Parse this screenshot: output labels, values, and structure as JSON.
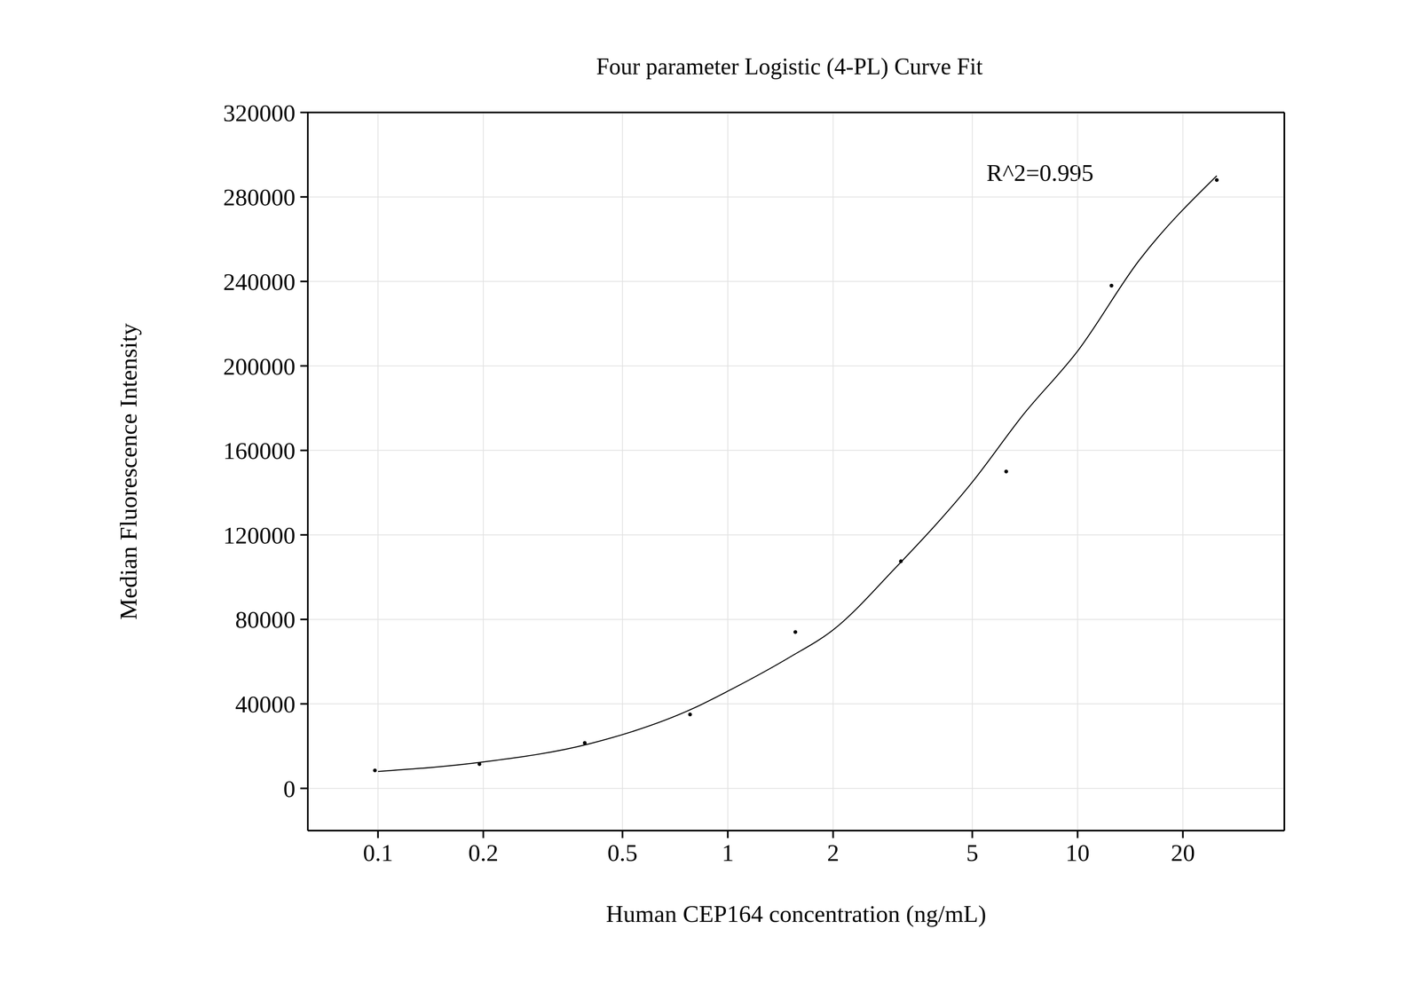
{
  "chart_data": {
    "type": "scatter",
    "title": "Four parameter Logistic (4-PL) Curve Fit",
    "x_label": "Human CEP164 concentration (ng/mL)",
    "y_label": "Median Fluorescence Intensity",
    "annotation": "R^2=0.995",
    "log": "x",
    "grid": true,
    "xlim": [
      0.063,
      39
    ],
    "xticks": [
      0.1,
      0.2,
      0.5,
      1,
      2,
      5,
      10,
      20
    ],
    "ylim": [
      -20000,
      320000
    ],
    "yticks": [
      0,
      40000,
      80000,
      120000,
      160000,
      200000,
      240000,
      280000,
      320000
    ],
    "series": [
      {
        "type": "scatter",
        "color": "#000000",
        "marker": "circle",
        "x": [
          0.098,
          0.195,
          0.39,
          0.78,
          1.56,
          3.125,
          6.25,
          12.5,
          25
        ],
        "values": [
          8500,
          11500,
          21500,
          35000,
          74000,
          107500,
          150000,
          238000,
          288000
        ]
      },
      {
        "type": "line",
        "color": "#000000",
        "line_style": "solid",
        "x": [
          0.1,
          0.2,
          0.4,
          0.8,
          1,
          1.5,
          2,
          3,
          5,
          7,
          10,
          15,
          25
        ],
        "values": [
          8000,
          12500,
          21000,
          38000,
          46000,
          62000,
          75000,
          104000,
          145000,
          177000,
          207000,
          250000,
          290000
        ]
      }
    ]
  }
}
